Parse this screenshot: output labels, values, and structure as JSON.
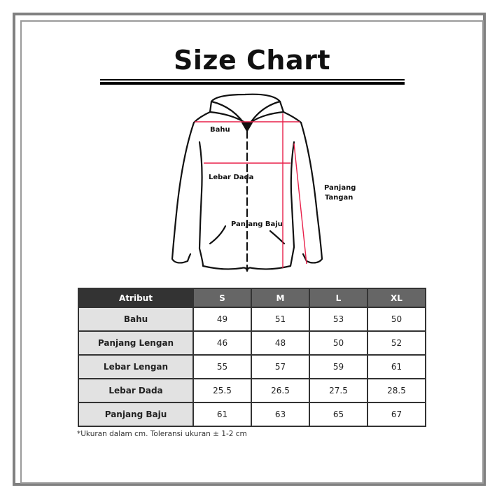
{
  "title": "Size Chart",
  "diagram": {
    "labels": {
      "bahu": "Bahu",
      "lebar_dada": "Lebar Dada",
      "panjang_baju": "Panjang Baju",
      "panjang_tangan_1": "Panjang",
      "panjang_tangan_2": "Tangan"
    },
    "measure_line_color": "#e8204a"
  },
  "table": {
    "headers": [
      "Atribut",
      "S",
      "M",
      "L",
      "XL"
    ],
    "rows": [
      {
        "label": "Bahu",
        "values": [
          "49",
          "51",
          "53",
          "50"
        ]
      },
      {
        "label": "Panjang Lengan",
        "values": [
          "46",
          "48",
          "50",
          "52"
        ]
      },
      {
        "label": "Lebar Lengan",
        "values": [
          "55",
          "57",
          "59",
          "61"
        ]
      },
      {
        "label": "Lebar Dada",
        "values": [
          "25.5",
          "26.5",
          "27.5",
          "28.5"
        ]
      },
      {
        "label": "Panjang Baju",
        "values": [
          "61",
          "63",
          "65",
          "67"
        ]
      }
    ]
  },
  "note": "*Ukuran dalam cm. Toleransi ukuran ± 1-2 cm"
}
